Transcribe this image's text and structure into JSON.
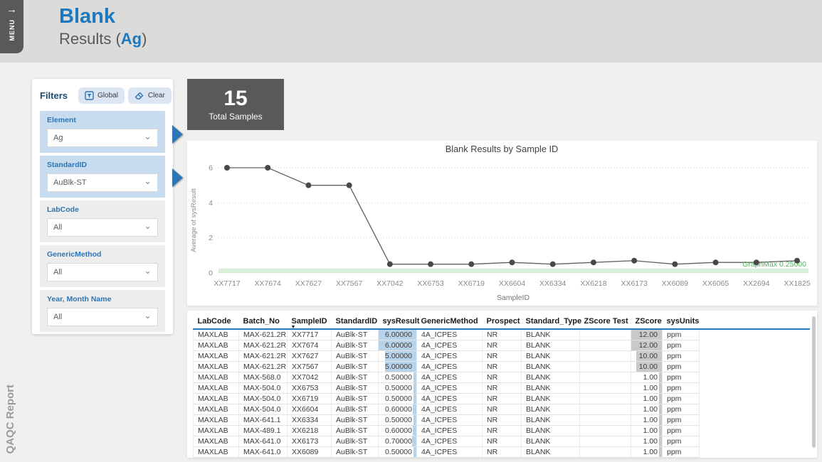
{
  "app": {
    "menu_label": "MENU",
    "menu_arrow": "→",
    "side_label": "QAQC Report"
  },
  "header": {
    "title": "Blank",
    "subtitle_prefix": "Results (",
    "subtitle_element": "Ag",
    "subtitle_suffix": ")"
  },
  "filters": {
    "title": "Filters",
    "global_button": "Global",
    "clear_button": "Clear",
    "slicers": [
      {
        "label": "Element",
        "value": "Ag",
        "active": true
      },
      {
        "label": "StandardID",
        "value": "AuBlk-ST",
        "active": true
      },
      {
        "label": "LabCode",
        "value": "All",
        "active": false
      },
      {
        "label": "GenericMethod",
        "value": "All",
        "active": false
      },
      {
        "label": "Year, Month Name",
        "value": "All",
        "active": false
      }
    ],
    "chevron": "⌄"
  },
  "kpi": {
    "value": "15",
    "label": "Total Samples"
  },
  "chart_data": {
    "type": "line",
    "title": "Blank Results by Sample ID",
    "xlabel": "SampleID",
    "ylabel": "Average of sysResult",
    "ylim": [
      0,
      6.4
    ],
    "yticks": [
      0,
      2,
      4,
      6
    ],
    "grid": "dotted",
    "legend": "none",
    "categories": [
      "XX7717",
      "XX7674",
      "XX7627",
      "XX7567",
      "XX7042",
      "XX6753",
      "XX6719",
      "XX6604",
      "XX6334",
      "XX6218",
      "XX6173",
      "XX6089",
      "XX6065",
      "XX2694",
      "XX1825"
    ],
    "values": [
      6,
      6,
      5,
      5,
      0.5,
      0.5,
      0.5,
      0.6,
      0.5,
      0.6,
      0.7,
      0.5,
      0.6,
      0.6,
      0.7
    ],
    "line_color": "#606060",
    "marker_color": "#484848",
    "reference_line": {
      "label": "GraphMax 0.25000",
      "value": 0.25,
      "color": "#55b55f",
      "band_color": "#d8efd8"
    }
  },
  "table": {
    "columns": [
      {
        "label": "LabCode"
      },
      {
        "label": "Batch_No"
      },
      {
        "label": "SampleID",
        "sorted": true
      },
      {
        "label": "StandardID"
      },
      {
        "label": "sysResult",
        "align": "right",
        "databar": "blue",
        "max": 6
      },
      {
        "label": "GenericMethod"
      },
      {
        "label": "Prospect"
      },
      {
        "label": "Standard_Type"
      },
      {
        "label": "ZScore Test"
      },
      {
        "label": "ZScore",
        "align": "right",
        "databar": "gray",
        "max": 12
      },
      {
        "label": "sysUnits"
      }
    ],
    "rows": [
      [
        "MAXLAB",
        "MAX-621.2R",
        "XX7717",
        "AuBlk-ST",
        "6.00000",
        "4A_ICPES",
        "NR",
        "BLANK",
        "",
        "12.00",
        "ppm"
      ],
      [
        "MAXLAB",
        "MAX-621.2R",
        "XX7674",
        "AuBlk-ST",
        "6.00000",
        "4A_ICPES",
        "NR",
        "BLANK",
        "",
        "12.00",
        "ppm"
      ],
      [
        "MAXLAB",
        "MAX-621.2R",
        "XX7627",
        "AuBlk-ST",
        "5.00000",
        "4A_ICPES",
        "NR",
        "BLANK",
        "",
        "10.00",
        "ppm"
      ],
      [
        "MAXLAB",
        "MAX-621.2R",
        "XX7567",
        "AuBlk-ST",
        "5.00000",
        "4A_ICPES",
        "NR",
        "BLANK",
        "",
        "10.00",
        "ppm"
      ],
      [
        "MAXLAB",
        "MAX-568.0",
        "XX7042",
        "AuBlk-ST",
        "0.50000",
        "4A_ICPES",
        "NR",
        "BLANK",
        "",
        "1.00",
        "ppm"
      ],
      [
        "MAXLAB",
        "MAX-504.0",
        "XX6753",
        "AuBlk-ST",
        "0.50000",
        "4A_ICPES",
        "NR",
        "BLANK",
        "",
        "1.00",
        "ppm"
      ],
      [
        "MAXLAB",
        "MAX-504.0",
        "XX6719",
        "AuBlk-ST",
        "0.50000",
        "4A_ICPES",
        "NR",
        "BLANK",
        "",
        "1.00",
        "ppm"
      ],
      [
        "MAXLAB",
        "MAX-504.0",
        "XX6604",
        "AuBlk-ST",
        "0.60000",
        "4A_ICPES",
        "NR",
        "BLANK",
        "",
        "1.00",
        "ppm"
      ],
      [
        "MAXLAB",
        "MAX-641.1",
        "XX6334",
        "AuBlk-ST",
        "0.50000",
        "4A_ICPES",
        "NR",
        "BLANK",
        "",
        "1.00",
        "ppm"
      ],
      [
        "MAXLAB",
        "MAX-489.1",
        "XX6218",
        "AuBlk-ST",
        "0.60000",
        "4A_ICPES",
        "NR",
        "BLANK",
        "",
        "1.00",
        "ppm"
      ],
      [
        "MAXLAB",
        "MAX-641.0",
        "XX6173",
        "AuBlk-ST",
        "0.70000",
        "4A_ICPES",
        "NR",
        "BLANK",
        "",
        "1.00",
        "ppm"
      ],
      [
        "MAXLAB",
        "MAX-641.0",
        "XX6089",
        "AuBlk-ST",
        "0.50000",
        "4A_ICPES",
        "NR",
        "BLANK",
        "",
        "1.00",
        "ppm"
      ]
    ]
  }
}
